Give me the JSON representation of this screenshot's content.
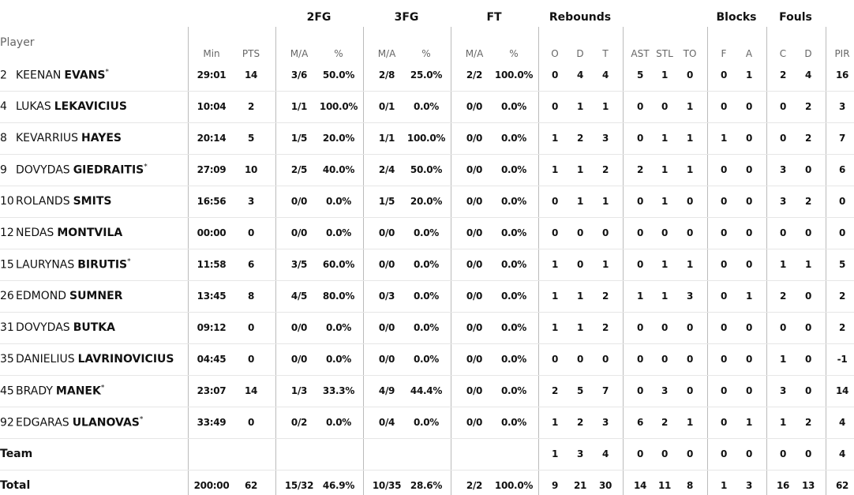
{
  "table": {
    "groups": [
      "2FG",
      "3FG",
      "FT",
      "Rebounds",
      "Blocks",
      "Fouls"
    ],
    "player_header": "Player",
    "columns": [
      "Min",
      "PTS",
      "M/A",
      "%",
      "M/A",
      "%",
      "M/A",
      "%",
      "O",
      "D",
      "T",
      "AST",
      "STL",
      "TO",
      "F",
      "A",
      "C",
      "D",
      "PIR"
    ],
    "rows": [
      {
        "number": "2",
        "first": "KEENAN",
        "last": "EVANS",
        "starter": "*",
        "cells": [
          "29:01",
          "14",
          "3/6",
          "50.0%",
          "2/8",
          "25.0%",
          "2/2",
          "100.0%",
          "0",
          "4",
          "4",
          "5",
          "1",
          "0",
          "0",
          "1",
          "2",
          "4",
          "16"
        ]
      },
      {
        "number": "4",
        "first": "LUKAS",
        "last": "LEKAVICIUS",
        "cells": [
          "10:04",
          "2",
          "1/1",
          "100.0%",
          "0/1",
          "0.0%",
          "0/0",
          "0.0%",
          "0",
          "1",
          "1",
          "0",
          "0",
          "1",
          "0",
          "0",
          "0",
          "2",
          "3"
        ]
      },
      {
        "number": "8",
        "first": "KEVARRIUS",
        "last": "HAYES",
        "cells": [
          "20:14",
          "5",
          "1/5",
          "20.0%",
          "1/1",
          "100.0%",
          "0/0",
          "0.0%",
          "1",
          "2",
          "3",
          "0",
          "1",
          "1",
          "1",
          "0",
          "0",
          "2",
          "7"
        ]
      },
      {
        "number": "9",
        "first": "DOVYDAS",
        "last": "GIEDRAITIS",
        "starter": "*",
        "cells": [
          "27:09",
          "10",
          "2/5",
          "40.0%",
          "2/4",
          "50.0%",
          "0/0",
          "0.0%",
          "1",
          "1",
          "2",
          "2",
          "1",
          "1",
          "0",
          "0",
          "3",
          "0",
          "6"
        ]
      },
      {
        "number": "10",
        "first": "ROLANDS",
        "last": "SMITS",
        "cells": [
          "16:56",
          "3",
          "0/0",
          "0.0%",
          "1/5",
          "20.0%",
          "0/0",
          "0.0%",
          "0",
          "1",
          "1",
          "0",
          "1",
          "0",
          "0",
          "0",
          "3",
          "2",
          "0"
        ]
      },
      {
        "number": "12",
        "first": "NEDAS",
        "last": "MONTVILA",
        "cells": [
          "00:00",
          "0",
          "0/0",
          "0.0%",
          "0/0",
          "0.0%",
          "0/0",
          "0.0%",
          "0",
          "0",
          "0",
          "0",
          "0",
          "0",
          "0",
          "0",
          "0",
          "0",
          "0"
        ]
      },
      {
        "number": "15",
        "first": "LAURYNAS",
        "last": "BIRUTIS",
        "starter": "*",
        "cells": [
          "11:58",
          "6",
          "3/5",
          "60.0%",
          "0/0",
          "0.0%",
          "0/0",
          "0.0%",
          "1",
          "0",
          "1",
          "0",
          "1",
          "1",
          "0",
          "0",
          "1",
          "1",
          "5"
        ]
      },
      {
        "number": "26",
        "first": "EDMOND",
        "last": "SUMNER",
        "cells": [
          "13:45",
          "8",
          "4/5",
          "80.0%",
          "0/3",
          "0.0%",
          "0/0",
          "0.0%",
          "1",
          "1",
          "2",
          "1",
          "1",
          "3",
          "0",
          "1",
          "2",
          "0",
          "2"
        ]
      },
      {
        "number": "31",
        "first": "DOVYDAS",
        "last": "BUTKA",
        "cells": [
          "09:12",
          "0",
          "0/0",
          "0.0%",
          "0/0",
          "0.0%",
          "0/0",
          "0.0%",
          "1",
          "1",
          "2",
          "0",
          "0",
          "0",
          "0",
          "0",
          "0",
          "0",
          "2"
        ]
      },
      {
        "number": "35",
        "first": "DANIELIUS",
        "last": "LAVRINOVICIUS",
        "cells": [
          "04:45",
          "0",
          "0/0",
          "0.0%",
          "0/0",
          "0.0%",
          "0/0",
          "0.0%",
          "0",
          "0",
          "0",
          "0",
          "0",
          "0",
          "0",
          "0",
          "1",
          "0",
          "-1"
        ]
      },
      {
        "number": "45",
        "first": "BRADY",
        "last": "MANEK",
        "starter": "*",
        "cells": [
          "23:07",
          "14",
          "1/3",
          "33.3%",
          "4/9",
          "44.4%",
          "0/0",
          "0.0%",
          "2",
          "5",
          "7",
          "0",
          "3",
          "0",
          "0",
          "0",
          "3",
          "0",
          "14"
        ]
      },
      {
        "number": "92",
        "first": "EDGARAS",
        "last": "ULANOVAS",
        "starter": "*",
        "cells": [
          "33:49",
          "0",
          "0/2",
          "0.0%",
          "0/4",
          "0.0%",
          "0/0",
          "0.0%",
          "1",
          "2",
          "3",
          "6",
          "2",
          "1",
          "0",
          "1",
          "1",
          "2",
          "4"
        ]
      },
      {
        "name": "Team",
        "cells": [
          null,
          null,
          null,
          null,
          null,
          null,
          null,
          null,
          "1",
          "3",
          "4",
          "0",
          "0",
          "0",
          "0",
          "0",
          "0",
          "0",
          "4"
        ]
      },
      {
        "name": "Total",
        "cells": [
          "200:00",
          "62",
          "15/32",
          "46.9%",
          "10/35",
          "28.6%",
          "2/2",
          "100.0%",
          "9",
          "21",
          "30",
          "14",
          "11",
          "8",
          "1",
          "3",
          "16",
          "13",
          "62"
        ]
      }
    ]
  }
}
